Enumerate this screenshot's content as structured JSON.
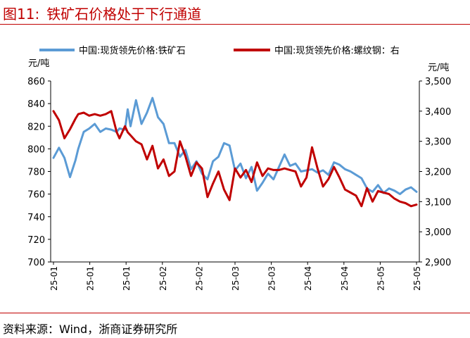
{
  "figure": {
    "number": "图11:",
    "title": "铁矿石价格处于下行通道",
    "source": "资料来源：Wind，浙商证券研究所"
  },
  "chart_data": {
    "type": "line",
    "legend_position": "top",
    "left_axis_unit": "元/吨",
    "right_axis_unit": "元/吨",
    "x_tick_labels": [
      "25-01",
      "25-01",
      "25-01",
      "25-02",
      "25-02",
      "25-03",
      "25-03",
      "25-04",
      "25-04",
      "25-05",
      "25-05"
    ],
    "left_ylim": [
      700,
      860
    ],
    "left_yticks": [
      700,
      720,
      740,
      760,
      780,
      800,
      820,
      840,
      860
    ],
    "right_ylim": [
      2900,
      3500
    ],
    "right_yticks": [
      2900,
      3000,
      3100,
      3200,
      3300,
      3400,
      3500
    ],
    "right_ytick_labels": [
      "2,900",
      "3,000",
      "3,100",
      "3,200",
      "3,300",
      "3,400",
      "3,500"
    ],
    "grid": false,
    "series": [
      {
        "name": "中国:现货领先价格:铁矿石",
        "axis": "left",
        "color": "#5b9bd5",
        "x": [
          0,
          2,
          4,
          6,
          8,
          9,
          11,
          13,
          15,
          17,
          19,
          21,
          23,
          24,
          26,
          27,
          28,
          30,
          32,
          34,
          36,
          38,
          40,
          42,
          44,
          46,
          48,
          50,
          52,
          54,
          56,
          58,
          60,
          62,
          64,
          66,
          68,
          70,
          72,
          74,
          76,
          78,
          80,
          82,
          84,
          86,
          88,
          90,
          92,
          94,
          96,
          98,
          100,
          102,
          104,
          106,
          108,
          110,
          112,
          114,
          116,
          118,
          120,
          122,
          124,
          126,
          128,
          130,
          132
        ],
        "values": [
          792,
          801,
          792,
          775,
          790,
          800,
          815,
          818,
          822,
          815,
          818,
          817,
          815,
          818,
          817,
          835,
          820,
          843,
          822,
          832,
          845,
          828,
          822,
          805,
          805,
          793,
          799,
          782,
          789,
          778,
          773,
          789,
          793,
          805,
          803,
          781,
          787,
          774,
          784,
          763,
          770,
          778,
          773,
          784,
          795,
          785,
          787,
          780,
          781,
          782,
          779,
          781,
          777,
          788,
          786,
          782,
          780,
          777,
          774,
          765,
          762,
          768,
          761,
          765,
          763,
          760,
          764,
          766,
          762
        ]
      },
      {
        "name": "中国:现货领先价格:螺纹钢：右",
        "axis": "right",
        "color": "#c00000",
        "x": [
          0,
          2,
          4,
          6,
          8,
          9,
          11,
          13,
          15,
          17,
          19,
          21,
          23,
          24,
          26,
          27,
          28,
          30,
          32,
          34,
          36,
          38,
          40,
          42,
          44,
          46,
          48,
          50,
          52,
          54,
          56,
          58,
          60,
          62,
          64,
          66,
          68,
          70,
          72,
          74,
          76,
          78,
          80,
          82,
          84,
          86,
          88,
          90,
          92,
          94,
          96,
          98,
          100,
          102,
          104,
          106,
          108,
          110,
          112,
          114,
          116,
          118,
          120,
          122,
          124,
          126,
          128,
          130,
          132
        ],
        "values": [
          3400,
          3370,
          3310,
          3340,
          3375,
          3390,
          3395,
          3385,
          3390,
          3385,
          3390,
          3400,
          3330,
          3310,
          3350,
          3330,
          3320,
          3300,
          3290,
          3240,
          3285,
          3210,
          3240,
          3185,
          3200,
          3300,
          3250,
          3185,
          3230,
          3210,
          3115,
          3160,
          3200,
          3140,
          3105,
          3210,
          3180,
          3205,
          3165,
          3230,
          3185,
          3210,
          3205,
          3205,
          3210,
          3205,
          3200,
          3150,
          3180,
          3280,
          3210,
          3150,
          3175,
          3215,
          3180,
          3140,
          3130,
          3120,
          3085,
          3145,
          3100,
          3135,
          3130,
          3125,
          3110,
          3100,
          3095,
          3085,
          3090
        ]
      }
    ]
  }
}
